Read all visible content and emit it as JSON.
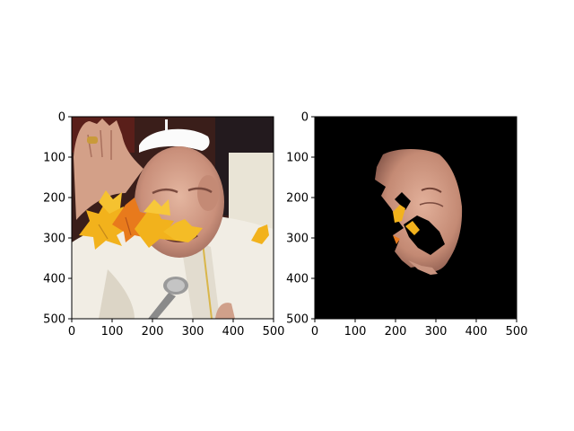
{
  "figure": {
    "background": "#ffffff",
    "panels": [
      {
        "name": "left-panel",
        "content": "photo of elderly man in white cap and robe with autumn maple leaves overlaid, microphone in foreground",
        "xticks": [
          "0",
          "100",
          "200",
          "300",
          "400",
          "500"
        ],
        "yticks": [
          "0",
          "100",
          "200",
          "300",
          "400",
          "500"
        ],
        "xlim": [
          0,
          500
        ],
        "ylim": [
          500,
          0
        ]
      },
      {
        "name": "right-panel",
        "content": "segmentation mask result: face region on black background with partial leaf fragments",
        "xticks": [
          "0",
          "100",
          "200",
          "300",
          "400",
          "500"
        ],
        "yticks": [
          "0",
          "100",
          "200",
          "300",
          "400",
          "500"
        ],
        "xlim": [
          0,
          500
        ],
        "ylim": [
          500,
          0
        ],
        "background": "#000000"
      }
    ]
  },
  "colors": {
    "skin": "#d9a993",
    "robe": "#f1ede4",
    "leaf_yellow": "#f2b21c",
    "leaf_orange": "#e87a1c",
    "dark_bg": "#2b2020",
    "axis": "#000000"
  }
}
